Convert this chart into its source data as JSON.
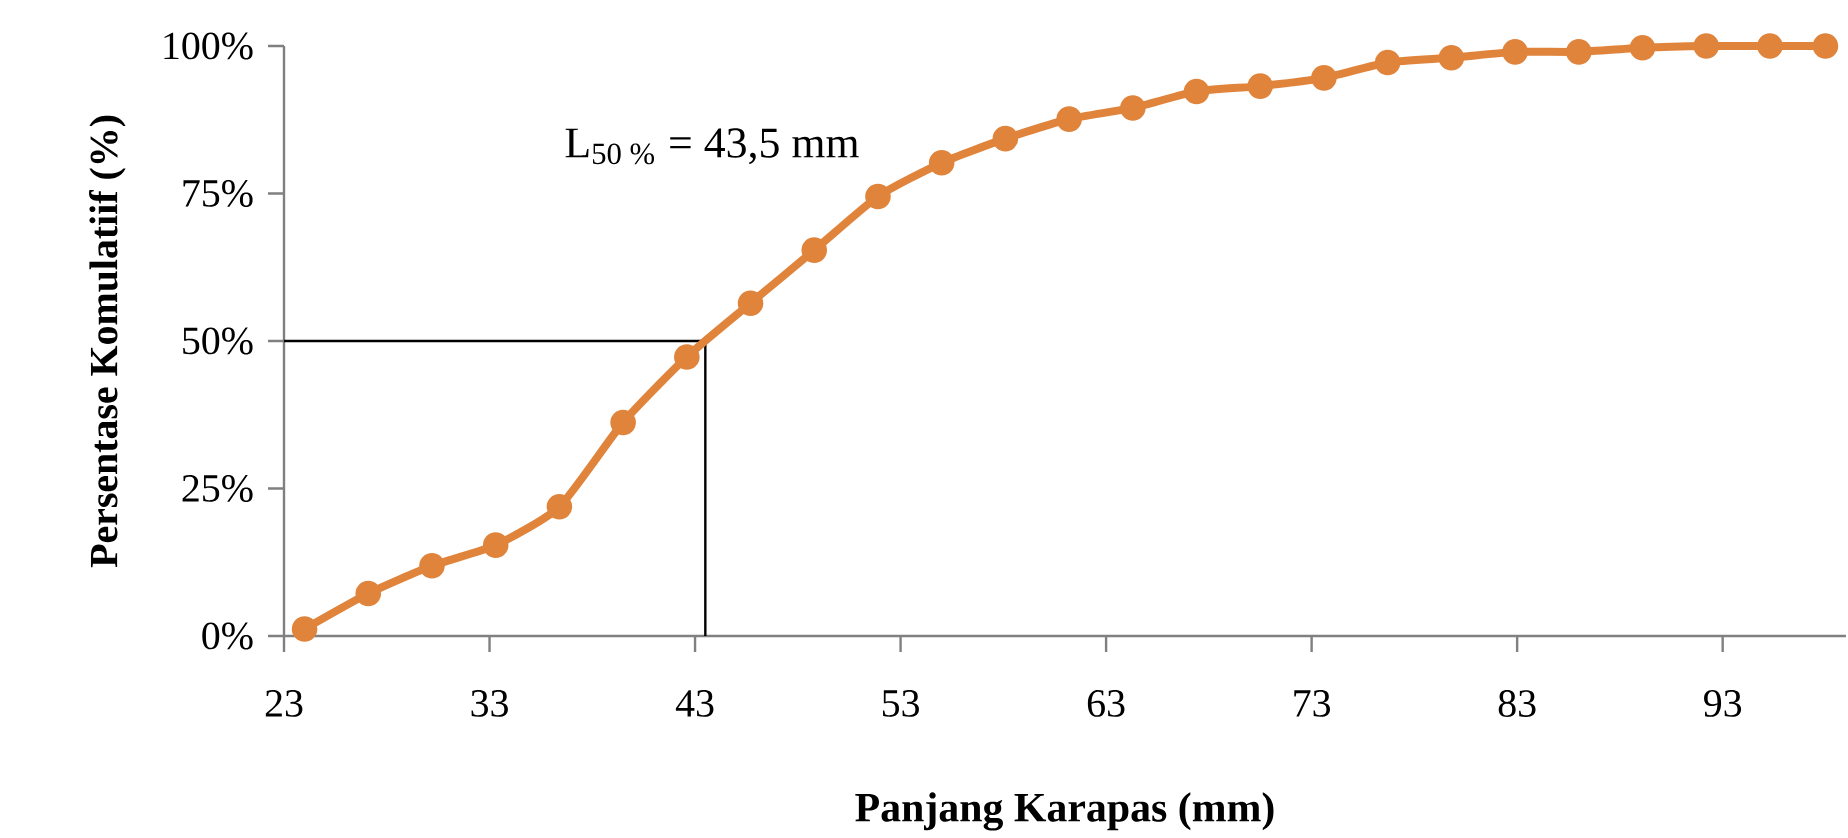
{
  "chart_data": {
    "type": "line",
    "xlabel": "Panjang  Karapas (mm)",
    "ylabel": "Persentase Komulatiif (%)",
    "annotations": [
      "L$_{50 %}$ = 43,5 mm"
    ],
    "series": [
      {
        "color": "#e0843c",
        "x": [
          24.0,
          27.1,
          30.2,
          33.3,
          36.4,
          39.5,
          42.6,
          45.7,
          48.8,
          51.9,
          55.0,
          58.1,
          61.2,
          64.3,
          67.4,
          70.5,
          73.6,
          76.7,
          79.8,
          82.9,
          86.0,
          89.1,
          92.2,
          95.3,
          98.0
        ],
        "values": [
          1.2,
          7.2,
          11.9,
          15.4,
          21.9,
          36.2,
          47.3,
          56.4,
          65.4,
          74.5,
          80.2,
          84.3,
          87.6,
          89.5,
          92.3,
          93.2,
          94.6,
          97.2,
          98.0,
          99.0,
          99.0,
          99.7,
          100,
          100,
          100
        ]
      }
    ],
    "marker": "circle",
    "line_style": "solid",
    "ref_lines": [
      {
        "axis": "x",
        "value": 43.5
      },
      {
        "axis": "y",
        "value": 50
      }
    ],
    "xlim": [
      23,
      99
    ],
    "xticks": [
      23,
      33,
      43,
      53,
      63,
      73,
      83,
      93
    ],
    "ylim": [
      0,
      100
    ],
    "yticks": [
      {
        "value": 0,
        "label": "0%"
      },
      {
        "value": 25,
        "label": "25%"
      },
      {
        "value": 50,
        "label": "50%"
      },
      {
        "value": 75,
        "label": "75%"
      },
      {
        "value": 100,
        "label": "100%"
      }
    ]
  }
}
